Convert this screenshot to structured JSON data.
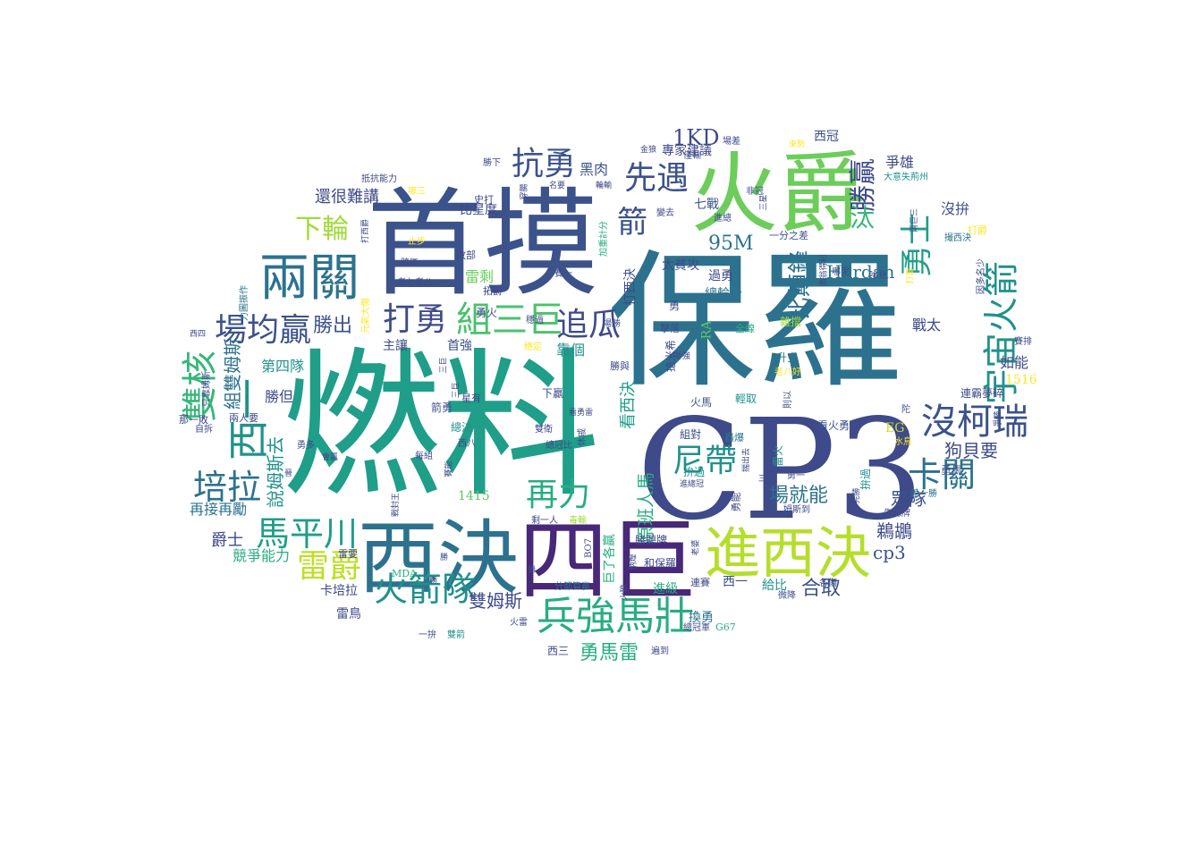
{
  "palette": [
    "#440154",
    "#3b528b",
    "#21918c",
    "#27ad81",
    "#5ec962",
    "#c8e020",
    "#fde725"
  ],
  "words": [
    {
      "t": "燃料",
      "c": "#1f9e89"
    },
    {
      "t": "保羅",
      "c": "#2c728e"
    },
    {
      "t": "首摸",
      "c": "#3b528b"
    },
    {
      "t": "CP3",
      "c": "#3e4a89"
    },
    {
      "t": "四巨",
      "c": "#482878"
    },
    {
      "t": "西決",
      "c": "#2c728e"
    },
    {
      "t": "火爵",
      "c": "#6ccd5a"
    },
    {
      "t": "進西決",
      "c": "#b5de2b"
    },
    {
      "t": "兩關",
      "c": "#2c728e"
    },
    {
      "t": "兵強馬壯",
      "c": "#27ad81"
    },
    {
      "t": "組三巨",
      "c": "#4ac16d"
    },
    {
      "t": "宇宙火箭",
      "c": "#21918c"
    },
    {
      "t": "沒柯瑞",
      "c": "#3b528b"
    },
    {
      "t": "卡關",
      "c": "#2c728e"
    },
    {
      "t": "火箭隊",
      "c": "#21918c"
    },
    {
      "t": "馬平川",
      "c": "#1f9e89"
    },
    {
      "t": "西一",
      "c": "#21918c"
    },
    {
      "t": "雙核",
      "c": "#35b779"
    },
    {
      "t": "場均贏",
      "c": "#3b528b"
    },
    {
      "t": "培拉",
      "c": "#2c728e"
    },
    {
      "t": "打勇",
      "c": "#3e4a89"
    },
    {
      "t": "追瓜",
      "c": "#3e4a89"
    },
    {
      "t": "抗勇",
      "c": "#3b528b"
    },
    {
      "t": "先遇",
      "c": "#3b528b"
    },
    {
      "t": "再力",
      "c": "#27ad81"
    },
    {
      "t": "尼帶",
      "c": "#21918c"
    },
    {
      "t": "雷爵",
      "c": "#bddf26"
    },
    {
      "t": "勇士",
      "c": "#1f9e89"
    },
    {
      "t": "勝贏",
      "c": "#3e4a89"
    },
    {
      "t": "比顛鋒",
      "c": "#2c728e"
    },
    {
      "t": "下輪",
      "c": "#a0da39"
    },
    {
      "t": "箭",
      "c": "#3b528b"
    },
    {
      "t": "汰",
      "c": "#35b779"
    },
    {
      "t": "95M",
      "c": "#2c728e"
    },
    {
      "t": "1KD",
      "c": "#3e4a89"
    },
    {
      "t": "勝出",
      "c": "#3b528b"
    },
    {
      "t": "場就能",
      "c": "#2c728e"
    },
    {
      "t": "合取",
      "c": "#3b528b"
    },
    {
      "t": "Hardan",
      "c": "#2c728e"
    },
    {
      "t": "狗貝要",
      "c": "#3e4a89"
    },
    {
      "t": "眾隊",
      "c": "#3b528b"
    },
    {
      "t": "鵜鶘",
      "c": "#3e4a89"
    },
    {
      "t": "cp3",
      "c": "#3b528b"
    },
    {
      "t": "勇馬雷",
      "c": "#27ad81"
    },
    {
      "t": "雙姆斯",
      "c": "#3e4a89"
    },
    {
      "t": "原班人馬",
      "c": "#27ad81"
    },
    {
      "t": "看西決",
      "c": "#1f9e89"
    },
    {
      "t": "組雙姆斯",
      "c": "#2c728e"
    },
    {
      "t": "說姆斯去",
      "c": "#21918c"
    },
    {
      "t": "還很難講",
      "c": "#3e4a89"
    },
    {
      "t": "爵士",
      "c": "#3e4a89"
    },
    {
      "t": "競爭能力",
      "c": "#27ad81"
    },
    {
      "t": "再接再勵",
      "c": "#2c728e"
    },
    {
      "t": "第四隊",
      "c": "#21918c"
    },
    {
      "t": "勝但",
      "c": "#3e4a89"
    },
    {
      "t": "爭雄",
      "c": "#3e4a89"
    },
    {
      "t": "戰太",
      "c": "#3e4a89"
    },
    {
      "t": "如能",
      "c": "#3e4a89"
    },
    {
      "t": "沒拚",
      "c": "#3b528b"
    },
    {
      "t": "黑肉",
      "c": "#3b528b"
    },
    {
      "t": "七戰",
      "c": "#3b528b"
    },
    {
      "t": "靠個",
      "c": "#21918c"
    },
    {
      "t": "雷剩",
      "c": "#6ccd5a"
    },
    {
      "t": "首強",
      "c": "#3b528b"
    },
    {
      "t": "主讓",
      "c": "#3e4a89"
    },
    {
      "t": "過勇",
      "c": "#3e4a89"
    },
    {
      "t": "總輪分",
      "c": "#2c728e"
    },
    {
      "t": "專家建議",
      "c": "#3e4a89"
    },
    {
      "t": "西冠",
      "c": "#3b528b"
    },
    {
      "t": "比星度",
      "c": "#3e4a89"
    },
    {
      "t": "1415",
      "c": "#5ec962"
    },
    {
      "t": "1516",
      "c": "#fde725"
    },
    {
      "t": "EG",
      "c": "#c8e020"
    },
    {
      "t": "卡培拉",
      "c": "#3e4a89"
    },
    {
      "t": "雷鳥",
      "c": "#3e4a89"
    },
    {
      "t": "西一",
      "c": "#3b528b"
    },
    {
      "t": "給比",
      "c": "#21918c"
    },
    {
      "t": "換勇",
      "c": "#2c728e"
    },
    {
      "t": "進級",
      "c": "#27ad81"
    },
    {
      "t": "雷要",
      "c": "#3e4a89"
    },
    {
      "t": "太貧攻",
      "c": "#3e4a89"
    },
    {
      "t": "勇火",
      "c": "#3e4a89"
    },
    {
      "t": "打西決",
      "c": "#3e4a89"
    },
    {
      "t": "一分之差",
      "c": "#3b528b"
    },
    {
      "t": "連霸夢碎",
      "c": "#3e4a89"
    },
    {
      "t": "看火勇",
      "c": "#3b528b"
    },
    {
      "t": "勇馬",
      "c": "#3b528b"
    },
    {
      "t": "火馬",
      "c": "#3b528b"
    },
    {
      "t": "輕取",
      "c": "#21918c"
    },
    {
      "t": "升空",
      "c": "#2c728e"
    },
    {
      "t": "全線",
      "c": "#27ad81"
    },
    {
      "t": "勝與",
      "c": "#3e4a89"
    },
    {
      "t": "搶米希",
      "c": "#3e4a89"
    },
    {
      "t": "下贏",
      "c": "#3e4a89"
    },
    {
      "t": "總決",
      "c": "#21918c"
    },
    {
      "t": "箭勇",
      "c": "#3b528b"
    },
    {
      "t": "西八",
      "c": "#3e4a89"
    },
    {
      "t": "星有",
      "c": "#3e4a89"
    },
    {
      "t": "拚過",
      "c": "#21918c"
    },
    {
      "t": "勇能",
      "c": "#3e4a89"
    },
    {
      "t": "組對",
      "c": "#3b528b"
    },
    {
      "t": "轟爆",
      "c": "#2c728e"
    },
    {
      "t": "G67",
      "c": "#27ad81"
    },
    {
      "t": "MDA",
      "c": "#27ad81"
    },
    {
      "t": "BO7",
      "c": "#3e4a89"
    },
    {
      "t": "和保羅",
      "c": "#3e4a89"
    },
    {
      "t": "勝聽牌",
      "c": "#3e4a89"
    },
    {
      "t": "連賽",
      "c": "#3e4a89"
    },
    {
      "t": "擊落",
      "c": "#3e4a89"
    },
    {
      "t": "拓爵",
      "c": "#3e4a89"
    },
    {
      "t": "敗部",
      "c": "#3e4a89"
    },
    {
      "t": "史打",
      "c": "#3e4a89"
    },
    {
      "t": "勝下",
      "c": "#3e4a89"
    },
    {
      "t": "抵抗能力",
      "c": "#3e4a89"
    },
    {
      "t": "名要",
      "c": "#3e4a89"
    },
    {
      "t": "止步",
      "c": "#fde725"
    },
    {
      "t": "跨區",
      "c": "#3e4a89"
    },
    {
      "t": "老七老八",
      "c": "#3e4a89"
    },
    {
      "t": "那一敗",
      "c": "#3e4a89"
    },
    {
      "t": "自拆",
      "c": "#3e4a89"
    },
    {
      "t": "西四",
      "c": "#3e4a89"
    },
    {
      "t": "剩一人",
      "c": "#3e4a89"
    },
    {
      "t": "毒輸",
      "c": "#a0da39"
    },
    {
      "t": "雙衛",
      "c": "#3e4a89"
    },
    {
      "t": "總冠比",
      "c": "#3e4a89"
    },
    {
      "t": "休戚",
      "c": "#3e4a89"
    },
    {
      "t": "每組",
      "c": "#3e4a89"
    },
    {
      "t": "分都算贏",
      "c": "#2c728e"
    },
    {
      "t": "火雷",
      "c": "#3e4a89"
    },
    {
      "t": "一拚",
      "c": "#3e4a89"
    },
    {
      "t": "雙箭",
      "c": "#21918c"
    },
    {
      "t": "西三",
      "c": "#3e4a89"
    },
    {
      "t": "遍到",
      "c": "#3e4a89"
    },
    {
      "t": "總冠軍",
      "c": "#3e4a89"
    },
    {
      "t": "各傷",
      "c": "#3e4a89"
    },
    {
      "t": "微降",
      "c": "#3e4a89"
    },
    {
      "t": "姆斯到",
      "c": "#3e4a89"
    },
    {
      "t": "先聽牌",
      "c": "#3e4a89"
    },
    {
      "t": "差一勝",
      "c": "#2c728e"
    },
    {
      "t": "勇一",
      "c": "#3e4a89"
    },
    {
      "t": "哈登",
      "c": "#3e4a89"
    },
    {
      "t": "賽排",
      "c": "#3e4a89"
    },
    {
      "t": "打爵",
      "c": "#fde725"
    },
    {
      "t": "場差",
      "c": "#3e4a89"
    },
    {
      "t": "僅輸",
      "c": "#3e4a89"
    },
    {
      "t": "金狼",
      "c": "#3e4a89"
    },
    {
      "t": "來勢",
      "c": "#fde725"
    },
    {
      "t": "進總",
      "c": "#3e4a89"
    },
    {
      "t": "非冠",
      "c": "#3e4a89"
    },
    {
      "t": "大意失荊州",
      "c": "#21918c"
    },
    {
      "t": "勇",
      "c": "#3e4a89"
    },
    {
      "t": "賽一",
      "c": "#3e4a89"
    },
    {
      "t": "場勝",
      "c": "#3e4a89"
    },
    {
      "t": "穩過",
      "c": "#3e4a89"
    },
    {
      "t": "兩人要",
      "c": "#3e4a89"
    },
    {
      "t": "會贏",
      "c": "#3e4a89"
    },
    {
      "t": "勇多",
      "c": "#3e4a89"
    },
    {
      "t": "力圖振作",
      "c": "#2c728e"
    },
    {
      "t": "只靠姆斯",
      "c": "#3e4a89"
    },
    {
      "t": "元氣大傷",
      "c": "#fde725"
    },
    {
      "t": "打西爵",
      "c": "#3e4a89"
    },
    {
      "t": "加重計分",
      "c": "#27ad81"
    },
    {
      "t": "輪輸",
      "c": "#3e4a89"
    },
    {
      "t": "變去",
      "c": "#3e4a89"
    },
    {
      "t": "三星",
      "c": "#3e4a89"
    },
    {
      "t": "撮西決",
      "c": "#2c728e"
    },
    {
      "t": "因多名少",
      "c": "#3e4a89"
    },
    {
      "t": "漁翁得利",
      "c": "#3e4a89"
    },
    {
      "t": "打雷",
      "c": "#fde725"
    },
    {
      "t": "哪泥",
      "c": "#3e4a89"
    },
    {
      "t": "雜擋",
      "c": "#a0da39"
    },
    {
      "t": "老八好",
      "c": "#fde725"
    },
    {
      "t": "則以",
      "c": "#3e4a89"
    },
    {
      "t": "雷火",
      "c": "#21918c"
    },
    {
      "t": "水鳥",
      "c": "#fde725"
    },
    {
      "t": "拚過",
      "c": "#21918c"
    },
    {
      "t": "完勝",
      "c": "#3e4a89"
    },
    {
      "t": "爭勝",
      "c": "#3e4a89"
    },
    {
      "t": "陀",
      "c": "#3e4a89"
    },
    {
      "t": "RA",
      "c": "#5ec962"
    },
    {
      "t": "場強",
      "c": "#3e4a89"
    },
    {
      "t": "穩定",
      "c": "#fde725"
    },
    {
      "t": "揣出去",
      "c": "#3e4a89"
    },
    {
      "t": "老婆",
      "c": "#3e4a89"
    },
    {
      "t": "巨了各贏",
      "c": "#27ad81"
    },
    {
      "t": "看勇雷",
      "c": "#3e4a89"
    },
    {
      "t": "炳煌",
      "c": "#3e4a89"
    },
    {
      "t": "三巨",
      "c": "#3e4a89"
    },
    {
      "t": "戰封王",
      "c": "#3e4a89"
    },
    {
      "t": "賽能",
      "c": "#3e4a89"
    },
    {
      "t": "勝",
      "c": "#3e4a89"
    },
    {
      "t": "晉",
      "c": "#3e4a89"
    },
    {
      "t": "三巨",
      "c": "#3e4a89"
    },
    {
      "t": "進總冠",
      "c": "#3e4a89"
    },
    {
      "t": "兩巨三",
      "c": "#3e4a89"
    },
    {
      "t": "哪三",
      "c": "#fde725"
    },
    {
      "t": "穿腸",
      "c": "#3e4a89"
    },
    {
      "t": "三星",
      "c": "#3e4a89"
    },
    {
      "t": "火狼",
      "c": "#3e4a89"
    },
    {
      "t": "勝",
      "c": "#3e4a89"
    },
    {
      "t": "勝",
      "c": "#3e4a89"
    }
  ]
}
